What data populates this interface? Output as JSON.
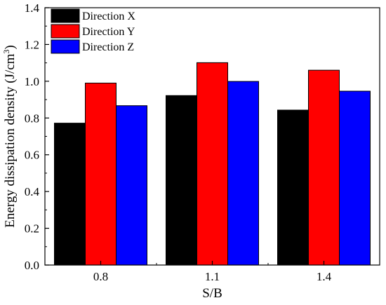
{
  "chart_data": {
    "type": "bar",
    "title": "",
    "xlabel": "S/B",
    "ylabel": {
      "text": "Energy dissipation density (J/cm",
      "sup": "3",
      "close": ")"
    },
    "categories": [
      "0.8",
      "1.1",
      "1.4"
    ],
    "series": [
      {
        "name": "Direction X",
        "color": "#000000",
        "values": [
          0.772,
          0.922,
          0.843
        ]
      },
      {
        "name": "Direction Y",
        "color": "#ff0000",
        "values": [
          0.99,
          1.101,
          1.06
        ]
      },
      {
        "name": "Direction Z",
        "color": "#0000ff",
        "values": [
          0.867,
          0.999,
          0.946
        ]
      }
    ],
    "ylim": [
      0,
      1.4
    ],
    "yticks": [
      "0.0",
      "0.2",
      "0.4",
      "0.6",
      "0.8",
      "1.0",
      "1.2",
      "1.4"
    ],
    "legend_position": "top-left",
    "grid": false
  }
}
